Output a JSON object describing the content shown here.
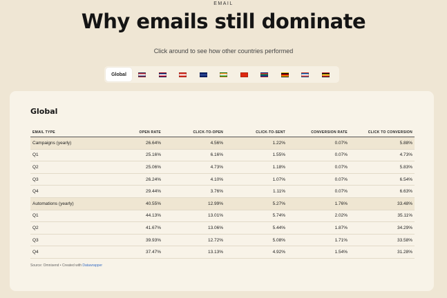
{
  "header": {
    "eyebrow": "EMAIL",
    "title": "Why emails still dominate",
    "subtitle": "Click around to see how other countries performed"
  },
  "tabs": {
    "active_label": "Global",
    "flags": [
      {
        "icon": "us-flag-icon",
        "colors": [
          "#b22234",
          "#ffffff",
          "#3c3b6e"
        ]
      },
      {
        "icon": "uk-flag-icon",
        "colors": [
          "#012169",
          "#ffffff",
          "#c8102e"
        ]
      },
      {
        "icon": "canada-flag-icon",
        "colors": [
          "#d52b1e",
          "#ffffff",
          "#d52b1e"
        ]
      },
      {
        "icon": "australia-flag-icon",
        "colors": [
          "#012169",
          "#3a4f9a",
          "#012169"
        ]
      },
      {
        "icon": "india-flag-icon",
        "colors": [
          "#ff9933",
          "#ffffff",
          "#138808"
        ]
      },
      {
        "icon": "china-flag-icon",
        "colors": [
          "#de2910",
          "#de2910",
          "#de2910"
        ]
      },
      {
        "icon": "south-africa-flag-icon",
        "colors": [
          "#de3831",
          "#007a4d",
          "#002395"
        ]
      },
      {
        "icon": "germany-flag-icon",
        "colors": [
          "#000000",
          "#dd0000",
          "#ffce00"
        ]
      },
      {
        "icon": "france-flag-icon",
        "colors": [
          "#0055a4",
          "#ffffff",
          "#ef4135"
        ]
      },
      {
        "icon": "belgium-flag-icon",
        "colors": [
          "#000000",
          "#fdda24",
          "#ef3340"
        ]
      }
    ]
  },
  "card": {
    "title": "Global",
    "columns": [
      "EMAIL TYPE",
      "OPEN RATE",
      "CLICK-TO-OPEN",
      "CLICK-TO-SENT",
      "CONVERSION RATE",
      "CLICK TO CONVERSION"
    ],
    "rows": [
      {
        "cells": [
          "Campaigns (yearly)",
          "26.64%",
          "4.56%",
          "1.22%",
          "0.07%",
          "5.88%"
        ],
        "highlight": true
      },
      {
        "cells": [
          "Q1",
          "25.16%",
          "6.16%",
          "1.55%",
          "0.07%",
          "4.73%"
        ],
        "highlight": false
      },
      {
        "cells": [
          "Q2",
          "25.06%",
          "4.73%",
          "1.18%",
          "0.07%",
          "5.83%"
        ],
        "highlight": false
      },
      {
        "cells": [
          "Q3",
          "26.24%",
          "4.10%",
          "1.07%",
          "0.07%",
          "6.54%"
        ],
        "highlight": false
      },
      {
        "cells": [
          "Q4",
          "29.44%",
          "3.76%",
          "1.11%",
          "0.07%",
          "6.63%"
        ],
        "highlight": false
      },
      {
        "cells": [
          "Automations (yearly)",
          "40.55%",
          "12.99%",
          "5.27%",
          "1.76%",
          "33.48%"
        ],
        "highlight": true
      },
      {
        "cells": [
          "Q1",
          "44.13%",
          "13.01%",
          "5.74%",
          "2.02%",
          "35.11%"
        ],
        "highlight": false
      },
      {
        "cells": [
          "Q2",
          "41.67%",
          "13.06%",
          "5.44%",
          "1.87%",
          "34.29%"
        ],
        "highlight": false
      },
      {
        "cells": [
          "Q3",
          "39.93%",
          "12.72%",
          "5.08%",
          "1.71%",
          "33.58%"
        ],
        "highlight": false
      },
      {
        "cells": [
          "Q4",
          "37.47%",
          "13.13%",
          "4.92%",
          "1.54%",
          "31.28%"
        ],
        "highlight": false
      }
    ],
    "source_prefix": "Source: Omnisend • Created with ",
    "source_link": "Datawrapper"
  }
}
